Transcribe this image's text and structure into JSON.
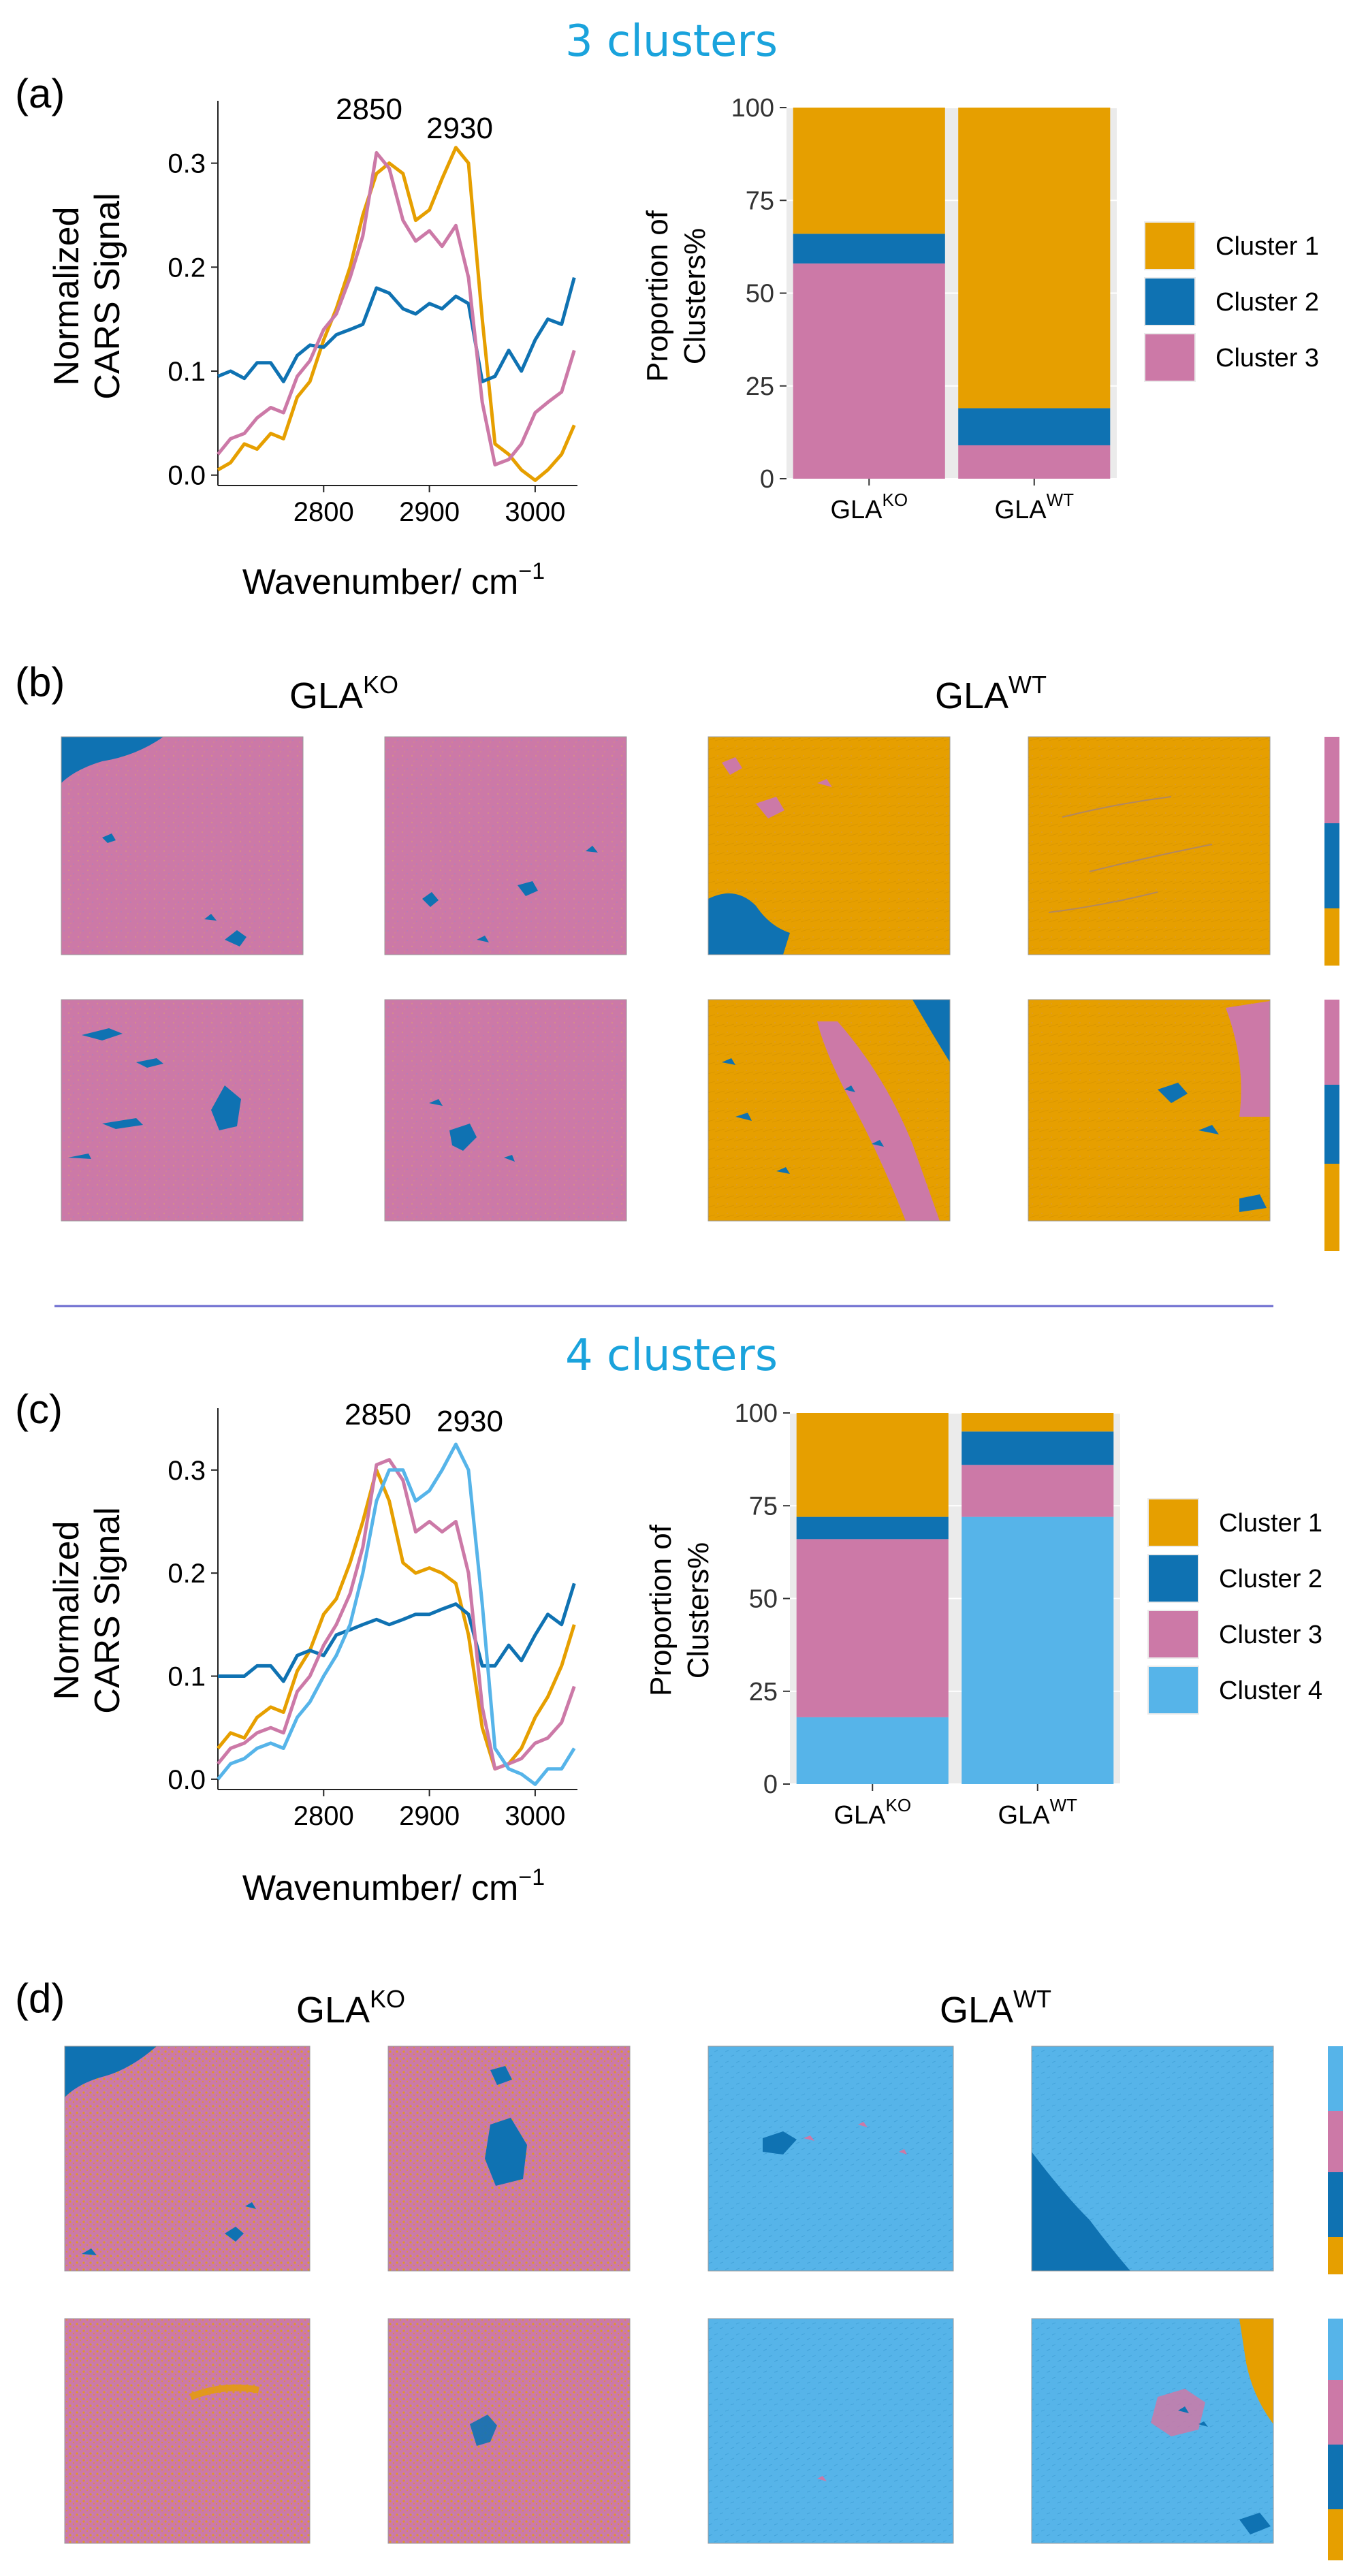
{
  "colors": {
    "cluster_1": "#E69F00",
    "cluster_2": "#0F72B2",
    "cluster_3": "#CC79A7",
    "cluster_4": "#56B4E9",
    "section_title": "#1AA3DC",
    "divider": "#6A6ACF"
  },
  "sections": {
    "top_title": "3 clusters",
    "bottom_title": "4 clusters"
  },
  "panels": {
    "a_label": "(a)",
    "b_label": "(b)",
    "c_label": "(c)",
    "d_label": "(d)"
  },
  "image_grid": {
    "group_ko_base": "GLA",
    "group_ko_sup": "KO",
    "group_wt_base": "GLA",
    "group_wt_sup": "WT"
  },
  "chart_data": [
    {
      "id": "a",
      "type": "line",
      "title": "",
      "xlabel": "Wavenumber/ cm",
      "xlabel_sup": "−1",
      "ylabel_line1": "Normalized",
      "ylabel_line2": "CARS Signal",
      "xlim": [
        2700,
        3040
      ],
      "ylim": [
        -0.01,
        0.36
      ],
      "xticks": [
        "2800",
        "2900",
        "3000"
      ],
      "yticks": [
        "0.0",
        "0.1",
        "0.2",
        "0.3"
      ],
      "peak_labels": [
        "2850",
        "2930"
      ],
      "x": [
        2700,
        2712,
        2725,
        2737,
        2750,
        2762,
        2775,
        2787,
        2800,
        2812,
        2825,
        2837,
        2850,
        2862,
        2875,
        2887,
        2900,
        2912,
        2925,
        2937,
        2950,
        2962,
        2975,
        2987,
        3000,
        3012,
        3025,
        3037
      ],
      "series": [
        {
          "name": "Cluster 1",
          "values": [
            0.005,
            0.012,
            0.03,
            0.025,
            0.04,
            0.035,
            0.075,
            0.09,
            0.13,
            0.16,
            0.2,
            0.25,
            0.29,
            0.3,
            0.29,
            0.245,
            0.255,
            0.285,
            0.315,
            0.3,
            0.15,
            0.03,
            0.02,
            0.005,
            -0.005,
            0.005,
            0.02,
            0.048
          ]
        },
        {
          "name": "Cluster 2",
          "values": [
            0.095,
            0.1,
            0.093,
            0.108,
            0.108,
            0.09,
            0.115,
            0.125,
            0.123,
            0.135,
            0.14,
            0.145,
            0.18,
            0.175,
            0.16,
            0.155,
            0.165,
            0.16,
            0.172,
            0.165,
            0.09,
            0.095,
            0.12,
            0.1,
            0.13,
            0.15,
            0.145,
            0.19
          ]
        },
        {
          "name": "Cluster 3",
          "values": [
            0.02,
            0.035,
            0.04,
            0.055,
            0.065,
            0.06,
            0.095,
            0.11,
            0.14,
            0.155,
            0.19,
            0.23,
            0.31,
            0.295,
            0.245,
            0.225,
            0.235,
            0.22,
            0.24,
            0.19,
            0.07,
            0.01,
            0.015,
            0.03,
            0.06,
            0.07,
            0.08,
            0.12
          ]
        }
      ]
    },
    {
      "id": "a_bar",
      "type": "bar",
      "title": "",
      "xlabel": "",
      "ylabel_line1": "Proportion of",
      "ylabel_line2": "Clusters%",
      "ylim": [
        0,
        100
      ],
      "yticks": [
        "0",
        "25",
        "50",
        "75",
        "100"
      ],
      "categories": [
        {
          "base": "GLA",
          "sup": "KO"
        },
        {
          "base": "GLA",
          "sup": "WT"
        }
      ],
      "stacked": true,
      "series": [
        {
          "name": "Cluster 3",
          "values": [
            58,
            9
          ]
        },
        {
          "name": "Cluster 2",
          "values": [
            8,
            10
          ]
        },
        {
          "name": "Cluster 1",
          "values": [
            34,
            81
          ]
        }
      ],
      "legend": [
        "Cluster 1",
        "Cluster 2",
        "Cluster 3"
      ],
      "legend_position": "right"
    },
    {
      "id": "c",
      "type": "line",
      "title": "",
      "xlabel": "Wavenumber/ cm",
      "xlabel_sup": "−1",
      "ylabel_line1": "Normalized",
      "ylabel_line2": "CARS Signal",
      "xlim": [
        2700,
        3040
      ],
      "ylim": [
        -0.01,
        0.36
      ],
      "xticks": [
        "2800",
        "2900",
        "3000"
      ],
      "yticks": [
        "0.0",
        "0.1",
        "0.2",
        "0.3"
      ],
      "peak_labels": [
        "2850",
        "2930"
      ],
      "x": [
        2700,
        2712,
        2725,
        2737,
        2750,
        2762,
        2775,
        2787,
        2800,
        2812,
        2825,
        2837,
        2850,
        2862,
        2875,
        2887,
        2900,
        2912,
        2925,
        2937,
        2950,
        2962,
        2975,
        2987,
        3000,
        3012,
        3025,
        3037
      ],
      "series": [
        {
          "name": "Cluster 1",
          "values": [
            0.03,
            0.045,
            0.04,
            0.06,
            0.07,
            0.065,
            0.105,
            0.125,
            0.16,
            0.175,
            0.21,
            0.25,
            0.3,
            0.27,
            0.21,
            0.2,
            0.205,
            0.2,
            0.19,
            0.14,
            0.05,
            0.01,
            0.015,
            0.03,
            0.06,
            0.08,
            0.11,
            0.15
          ]
        },
        {
          "name": "Cluster 2",
          "values": [
            0.1,
            0.1,
            0.1,
            0.11,
            0.11,
            0.095,
            0.12,
            0.125,
            0.12,
            0.14,
            0.145,
            0.15,
            0.155,
            0.15,
            0.155,
            0.16,
            0.16,
            0.165,
            0.17,
            0.16,
            0.11,
            0.11,
            0.13,
            0.115,
            0.14,
            0.16,
            0.15,
            0.19
          ]
        },
        {
          "name": "Cluster 3",
          "values": [
            0.015,
            0.03,
            0.035,
            0.045,
            0.05,
            0.045,
            0.085,
            0.1,
            0.13,
            0.15,
            0.18,
            0.225,
            0.305,
            0.31,
            0.29,
            0.24,
            0.25,
            0.24,
            0.25,
            0.2,
            0.07,
            0.01,
            0.015,
            0.02,
            0.035,
            0.04,
            0.055,
            0.09
          ]
        },
        {
          "name": "Cluster 4",
          "values": [
            0.0,
            0.015,
            0.02,
            0.03,
            0.035,
            0.03,
            0.06,
            0.075,
            0.1,
            0.12,
            0.15,
            0.2,
            0.27,
            0.3,
            0.3,
            0.27,
            0.28,
            0.3,
            0.325,
            0.3,
            0.17,
            0.03,
            0.01,
            0.005,
            -0.005,
            0.01,
            0.01,
            0.03
          ]
        }
      ]
    },
    {
      "id": "c_bar",
      "type": "bar",
      "title": "",
      "xlabel": "",
      "ylabel_line1": "Proportion of",
      "ylabel_line2": "Clusters%",
      "ylim": [
        0,
        100
      ],
      "yticks": [
        "0",
        "25",
        "50",
        "75",
        "100"
      ],
      "categories": [
        {
          "base": "GLA",
          "sup": "KO"
        },
        {
          "base": "GLA",
          "sup": "WT"
        }
      ],
      "stacked": true,
      "series": [
        {
          "name": "Cluster 4",
          "values": [
            18,
            72
          ]
        },
        {
          "name": "Cluster 3",
          "values": [
            48,
            14
          ]
        },
        {
          "name": "Cluster 2",
          "values": [
            6,
            9
          ]
        },
        {
          "name": "Cluster 1",
          "values": [
            28,
            5
          ]
        }
      ],
      "legend": [
        "Cluster 1",
        "Cluster 2",
        "Cluster 3",
        "Cluster 4"
      ],
      "legend_position": "right"
    }
  ]
}
